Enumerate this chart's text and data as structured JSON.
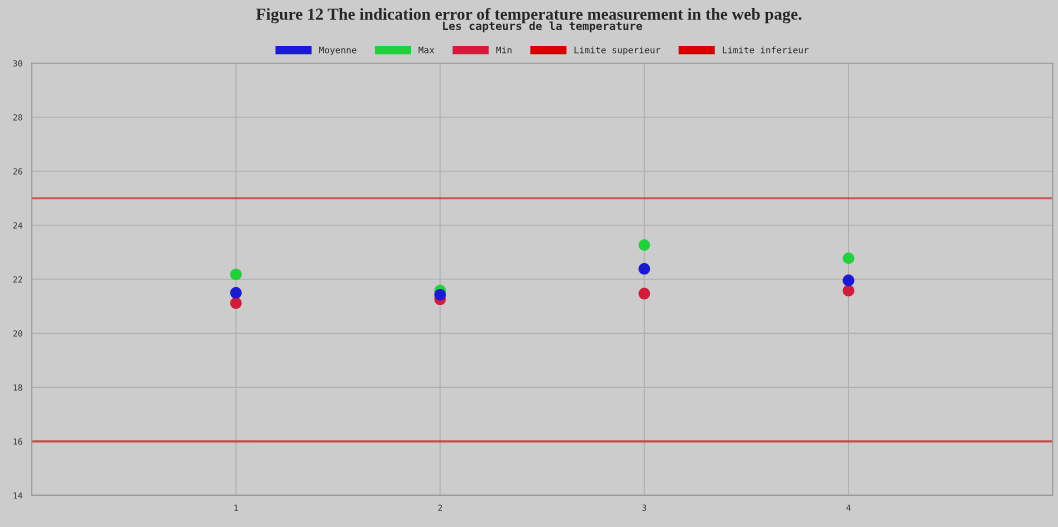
{
  "chart_data": {
    "type": "scatter",
    "title": "Les capteurs de la temperature",
    "annotations": [
      "Figure 12 The indication error of temperature measurement in the web page."
    ],
    "x": [
      1,
      2,
      3,
      4
    ],
    "series": [
      {
        "name": "Moyenne",
        "color": "#1a1ad0",
        "values": [
          21.5,
          21.43,
          22.39,
          21.96
        ]
      },
      {
        "name": "Max",
        "color": "#22d03c",
        "values": [
          22.18,
          21.58,
          23.27,
          22.78
        ]
      },
      {
        "name": "Min",
        "color": "#d21c3c",
        "values": [
          21.12,
          21.26,
          21.47,
          21.58
        ]
      }
    ],
    "ref_lines": [
      {
        "axis": "y",
        "value": 25,
        "label": "Limite superieur",
        "color": "#d40000"
      },
      {
        "axis": "y",
        "value": 16,
        "label": "Limite inferieur",
        "color": "#d40000"
      }
    ],
    "xlim": [
      0,
      5
    ],
    "xticks": [
      1,
      2,
      3,
      4
    ],
    "ylim": [
      14,
      30
    ],
    "yticks": [
      14,
      16,
      18,
      20,
      22,
      24,
      26,
      28,
      30
    ],
    "grid": true,
    "legend": "top",
    "marker": "circle"
  }
}
